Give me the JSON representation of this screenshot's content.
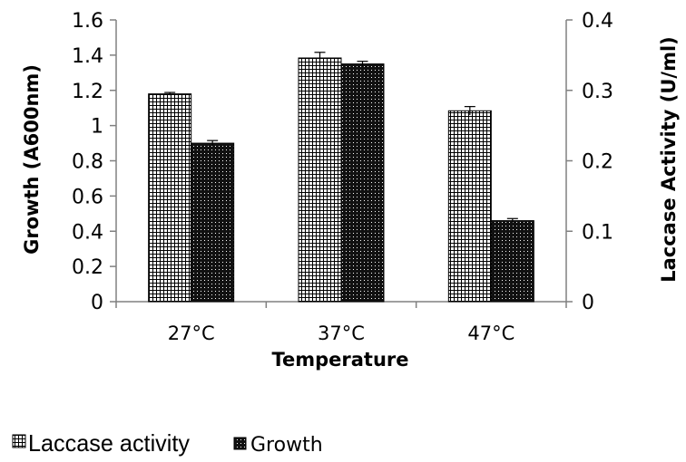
{
  "chart_data": {
    "type": "bar",
    "categories": [
      "27°C",
      "37°C",
      "47°C"
    ],
    "series": [
      {
        "name": "Laccase activity",
        "axis": "right",
        "values": [
          0.295,
          0.346,
          0.271
        ],
        "errors": [
          0.002,
          0.008,
          0.006
        ],
        "pattern": "grid"
      },
      {
        "name": "Growth",
        "axis": "left",
        "values": [
          0.9,
          1.35,
          0.46
        ],
        "errors": [
          0.015,
          0.015,
          0.012
        ],
        "pattern": "dotted-dark"
      }
    ],
    "xlabel": "Temperature",
    "ylabel_left": "Growth (A600nm)",
    "ylabel_right": "Laccase Activity (U/ml)",
    "ylim_left": [
      0,
      1.6
    ],
    "ylim_right": [
      0,
      0.4
    ],
    "yticks_left": [
      "0",
      "0.2",
      "0.4",
      "0.6",
      "0.8",
      "1",
      "1.2",
      "1.4",
      "1.6"
    ],
    "yticks_right": [
      "0",
      "0.1",
      "0.2",
      "0.3",
      "0.4"
    ],
    "grid": false,
    "legend_position": "bottom-left",
    "colors": {
      "bar_fill_light": "#ffffff",
      "bar_fill_dark": "#111111",
      "axis": "#808080"
    }
  }
}
